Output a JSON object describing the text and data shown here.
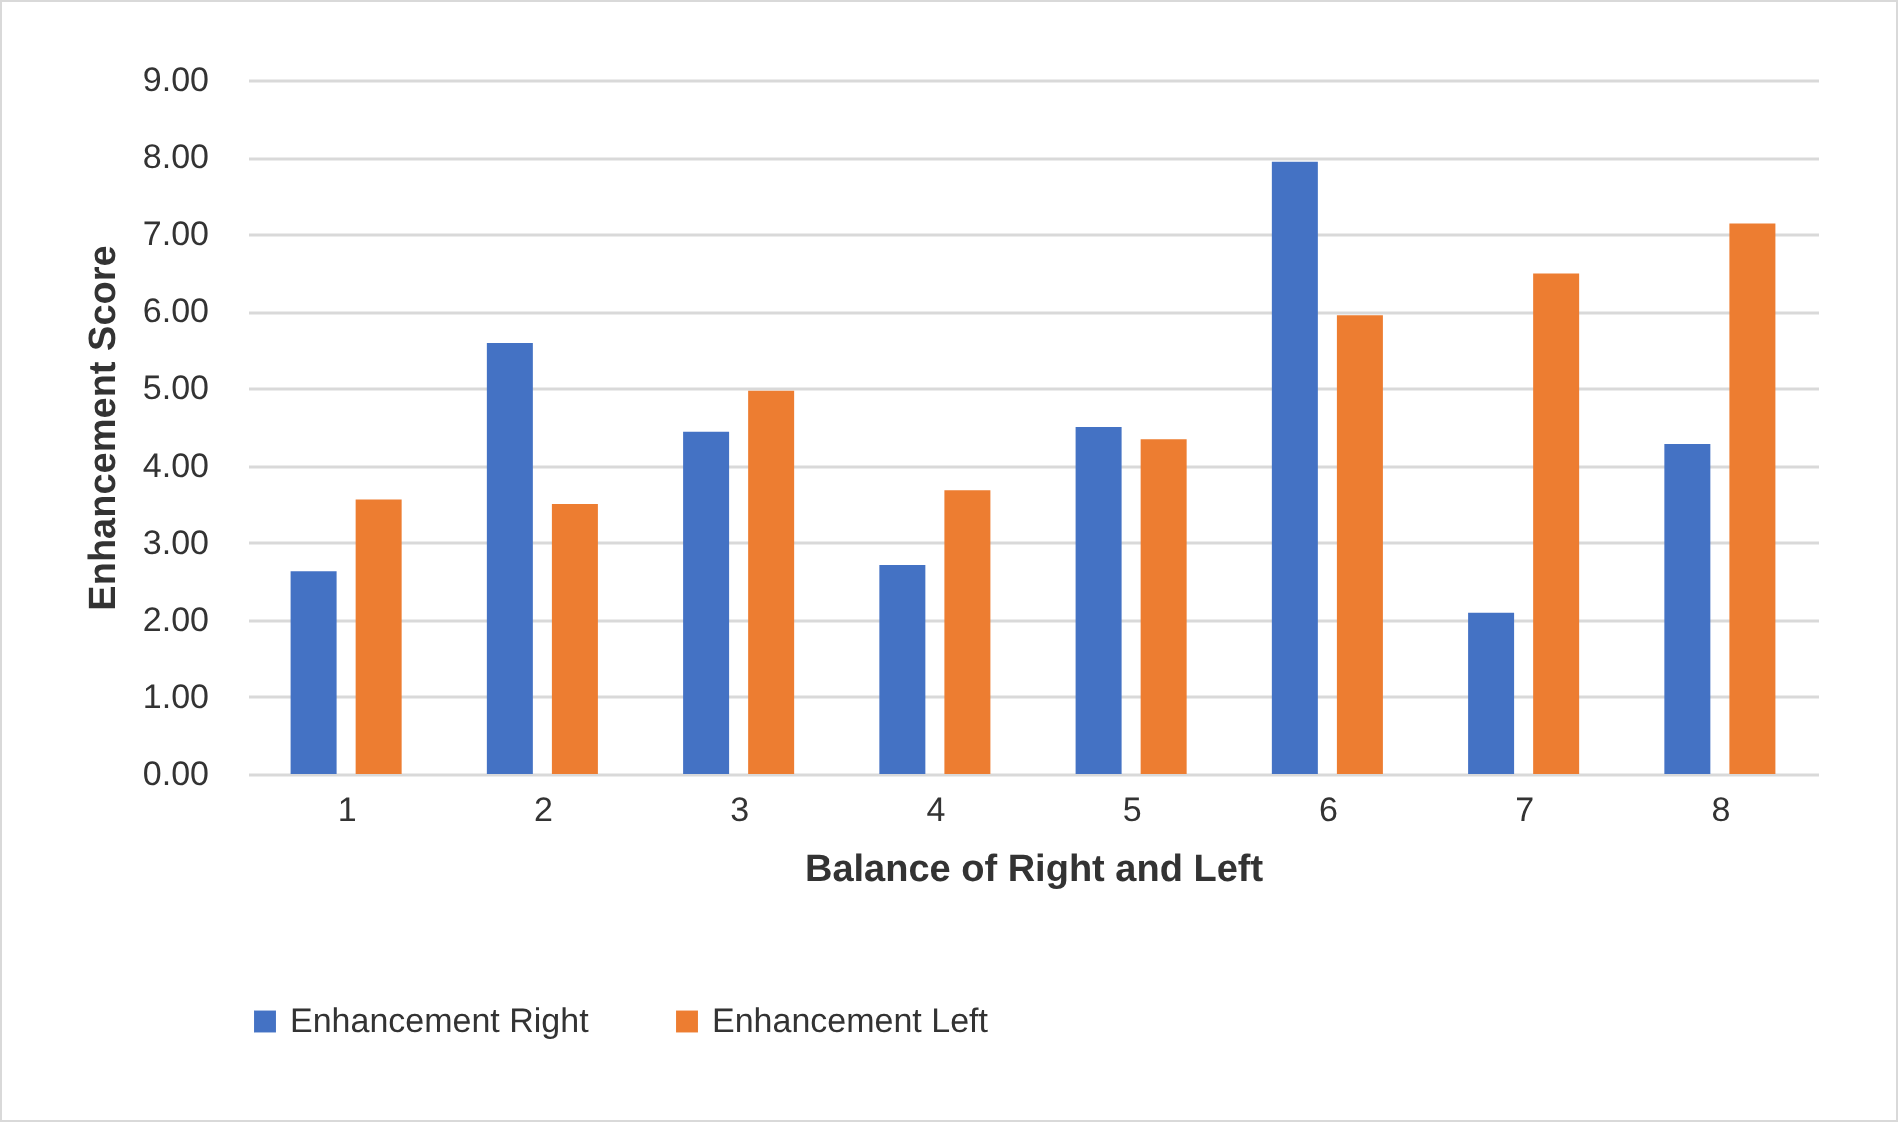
{
  "chart_data": {
    "type": "bar",
    "xlabel": "Balance of Right and Left",
    "ylabel": "Enhancement Score",
    "categories": [
      "1",
      "2",
      "3",
      "4",
      "5",
      "6",
      "7",
      "8"
    ],
    "series": [
      {
        "name": "Enhancement Right",
        "color": "#4472c4",
        "values": [
          2.63,
          5.59,
          4.44,
          2.71,
          4.5,
          7.94,
          2.09,
          4.28
        ]
      },
      {
        "name": "Enhancement Left",
        "color": "#ed7d31",
        "values": [
          3.56,
          3.5,
          4.97,
          3.68,
          4.34,
          5.95,
          6.49,
          7.14
        ]
      }
    ],
    "ylim": [
      0,
      9
    ],
    "yticks": [
      {
        "value": 0,
        "label": "0.00"
      },
      {
        "value": 1,
        "label": "1.00"
      },
      {
        "value": 2,
        "label": "2.00"
      },
      {
        "value": 3,
        "label": "3.00"
      },
      {
        "value": 4,
        "label": "4.00"
      },
      {
        "value": 5,
        "label": "5.00"
      },
      {
        "value": 6,
        "label": "6.00"
      },
      {
        "value": 7,
        "label": "7.00"
      },
      {
        "value": 8,
        "label": "8.00"
      },
      {
        "value": 9,
        "label": "9.00"
      }
    ],
    "grid": "y",
    "legend": "bottom"
  }
}
